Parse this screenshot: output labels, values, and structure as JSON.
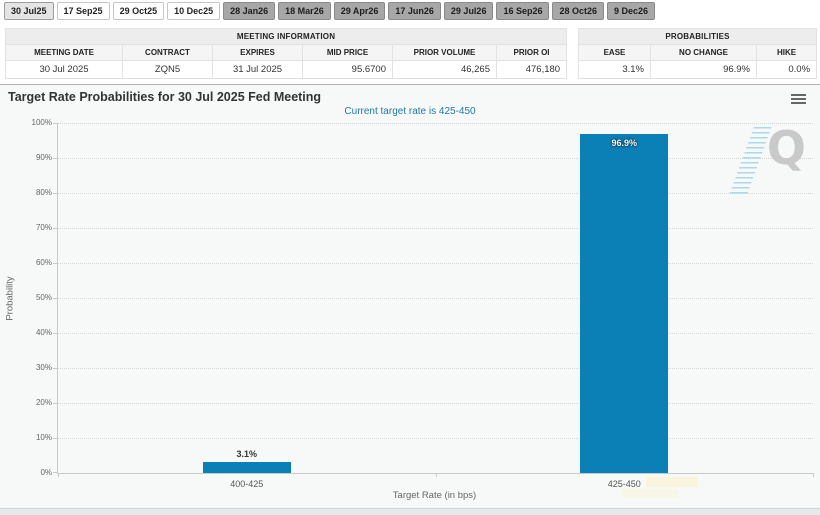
{
  "tabs": [
    {
      "label": "30 Jul25",
      "style": "selected"
    },
    {
      "label": "17 Sep25",
      "style": "light"
    },
    {
      "label": "29 Oct25",
      "style": "light"
    },
    {
      "label": "10 Dec25",
      "style": "light"
    },
    {
      "label": "28 Jan26",
      "style": "dark"
    },
    {
      "label": "18 Mar26",
      "style": "dark"
    },
    {
      "label": "29 Apr26",
      "style": "dark"
    },
    {
      "label": "17 Jun26",
      "style": "dark"
    },
    {
      "label": "29 Jul26",
      "style": "dark"
    },
    {
      "label": "16 Sep26",
      "style": "dark"
    },
    {
      "label": "28 Oct26",
      "style": "dark"
    },
    {
      "label": "9 Dec26",
      "style": "dark"
    }
  ],
  "meeting_information": {
    "title": "MEETING INFORMATION",
    "columns": [
      "MEETING DATE",
      "CONTRACT",
      "EXPIRES",
      "MID PRICE",
      "PRIOR VOLUME",
      "PRIOR OI"
    ],
    "values": [
      "30 Jul 2025",
      "ZQN5",
      "31 Jul 2025",
      "95.6700",
      "46,265",
      "476,180"
    ]
  },
  "probabilities": {
    "title": "PROBABILITIES",
    "columns": [
      "EASE",
      "NO CHANGE",
      "HIKE"
    ],
    "values": [
      "3.1%",
      "96.9%",
      "0.0%"
    ]
  },
  "chart": {
    "title": "Target Rate Probabilities for 30 Jul 2025 Fed Meeting",
    "subtitle": "Current target rate is 425-450",
    "menu_icon": "hamburger-menu",
    "watermark": "CME Group Q logo"
  },
  "chart_data": {
    "type": "bar",
    "title": "Target Rate Probabilities for 30 Jul 2025 Fed Meeting",
    "subtitle": "Current target rate is 425-450",
    "categories": [
      "400-425",
      "425-450"
    ],
    "values": [
      3.1,
      96.9
    ],
    "data_labels": [
      "3.1%",
      "96.9%"
    ],
    "xlabel": "Target Rate (in bps)",
    "ylabel": "Probability",
    "ylim": [
      0,
      100
    ],
    "ytick_step": 10,
    "yticks": [
      "0%",
      "10%",
      "20%",
      "30%",
      "40%",
      "50%",
      "60%",
      "70%",
      "80%",
      "90%",
      "100%"
    ],
    "grid": true,
    "legend": false,
    "bar_color": "#0b80b6"
  }
}
